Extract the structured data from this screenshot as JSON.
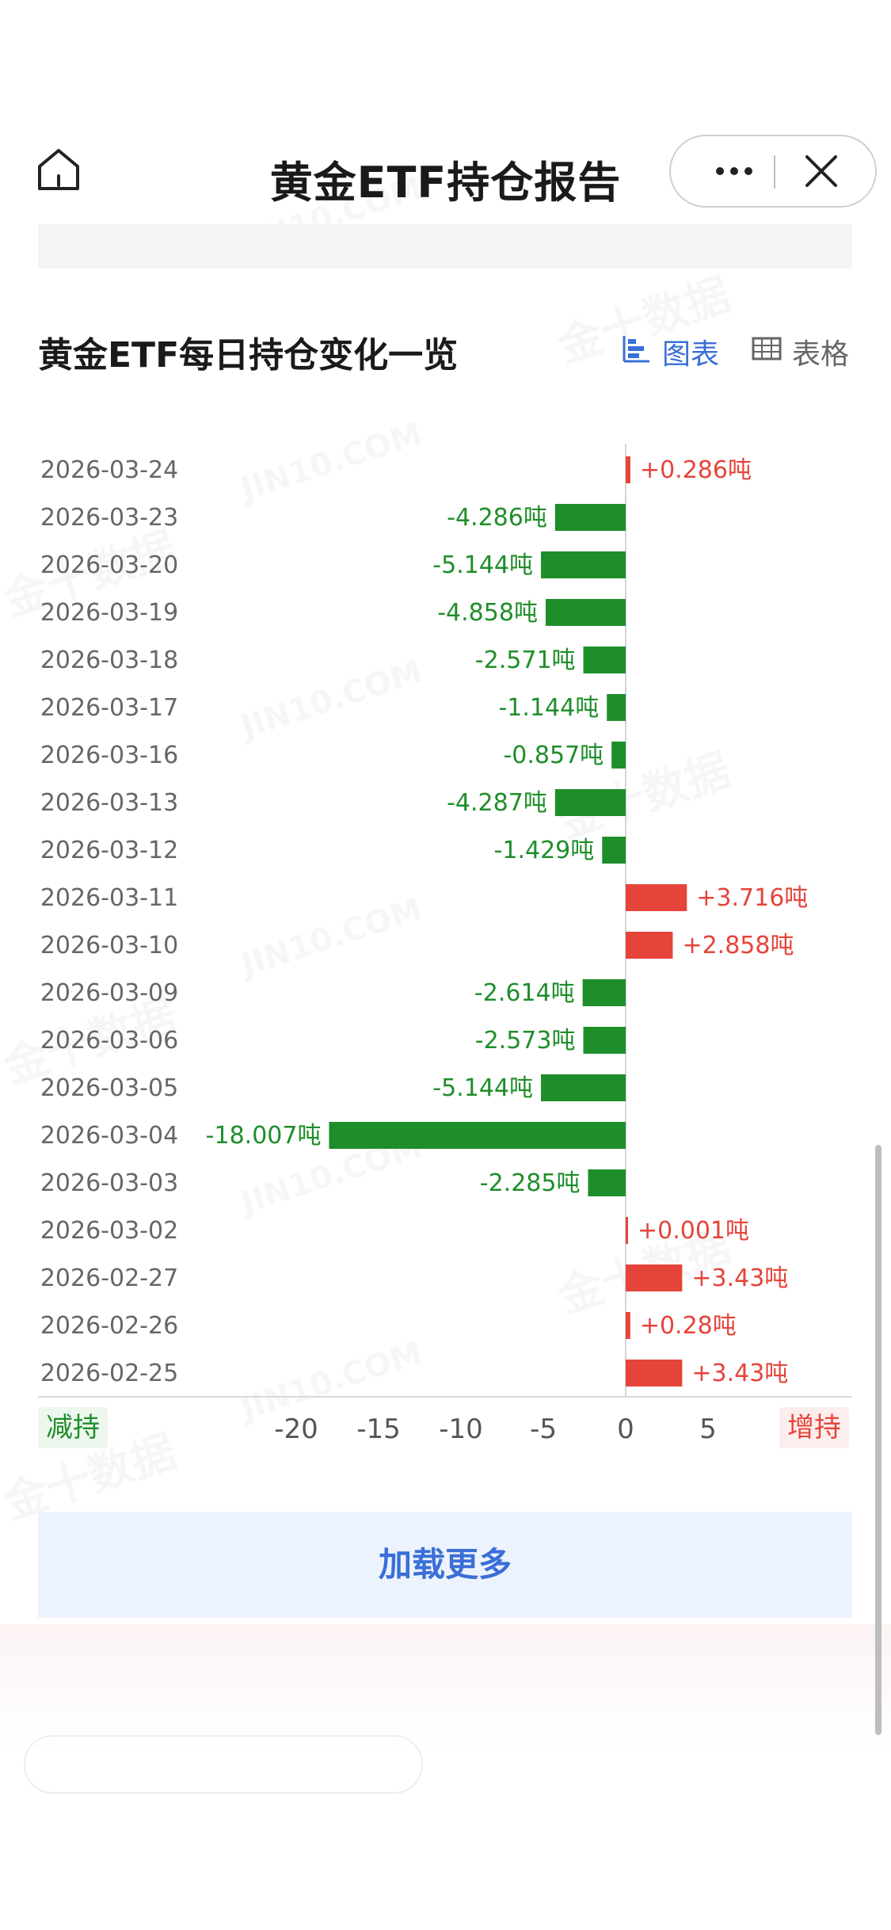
{
  "header": {
    "title": "黄金ETF持仓报告"
  },
  "section": {
    "title": "黄金ETF每日持仓变化一览",
    "tab_chart": "图表",
    "tab_table": "表格"
  },
  "legend": {
    "decrease": "减持",
    "increase": "增持"
  },
  "load_more": "加载更多",
  "colors": {
    "increase": "#e5443a",
    "decrease": "#1e8e2a",
    "accent": "#3a6fd8"
  },
  "chart_data": {
    "type": "bar",
    "orientation": "horizontal",
    "unit": "吨",
    "categories": [
      "2026-03-24",
      "2026-03-23",
      "2026-03-20",
      "2026-03-19",
      "2026-03-18",
      "2026-03-17",
      "2026-03-16",
      "2026-03-13",
      "2026-03-12",
      "2026-03-11",
      "2026-03-10",
      "2026-03-09",
      "2026-03-06",
      "2026-03-05",
      "2026-03-04",
      "2026-03-03",
      "2026-03-02",
      "2026-02-27",
      "2026-02-26",
      "2026-02-25"
    ],
    "values": [
      0.286,
      -4.286,
      -5.144,
      -4.858,
      -2.571,
      -1.144,
      -0.857,
      -4.287,
      -1.429,
      3.716,
      2.858,
      -2.614,
      -2.573,
      -5.144,
      -18.007,
      -2.285,
      0.001,
      3.43,
      0.28,
      3.43
    ],
    "labels": [
      "+0.286吨",
      "-4.286吨",
      "-5.144吨",
      "-4.858吨",
      "-2.571吨",
      "-1.144吨",
      "-0.857吨",
      "-4.287吨",
      "-1.429吨",
      "+3.716吨",
      "+2.858吨",
      "-2.614吨",
      "-2.573吨",
      "-5.144吨",
      "-18.007吨",
      "-2.285吨",
      "+0.001吨",
      "+3.43吨",
      "+0.28吨",
      "+3.43吨"
    ],
    "x_ticks": [
      -20,
      -15,
      -10,
      -5,
      0,
      5
    ],
    "xlim": [
      -22,
      7
    ]
  }
}
